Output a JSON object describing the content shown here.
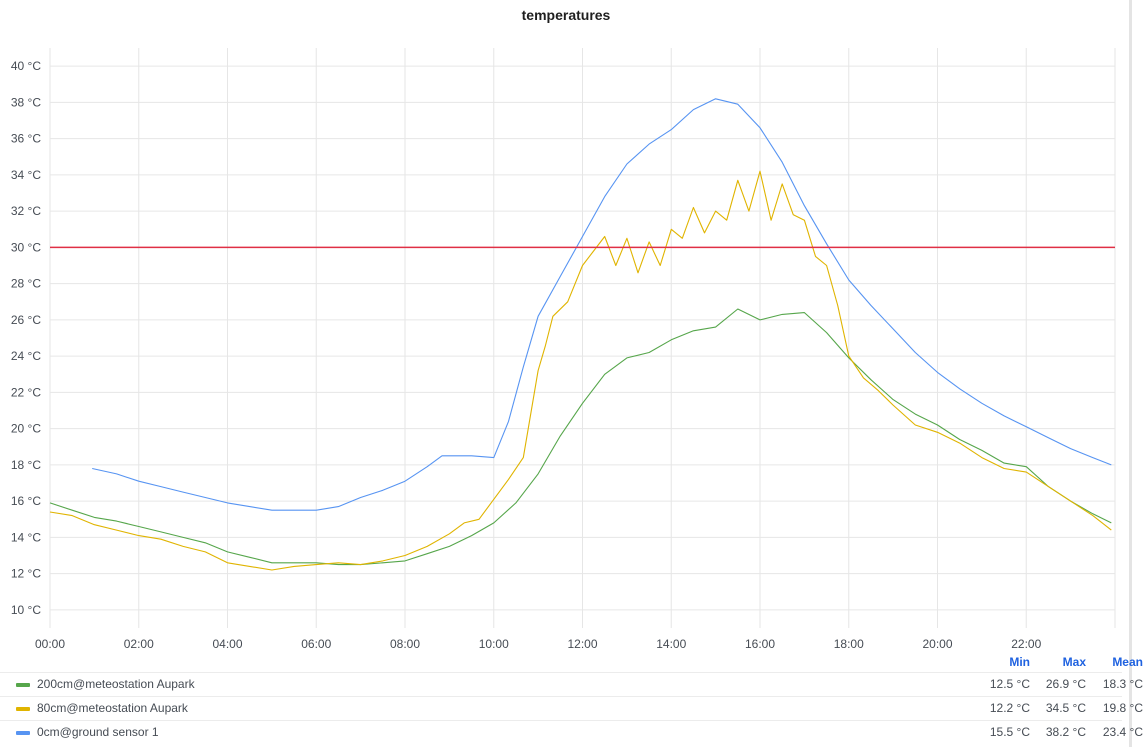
{
  "panel": {
    "title": "temperatures"
  },
  "legend": {
    "headers": {
      "min": "Min",
      "max": "Max",
      "mean": "Mean"
    },
    "rows": [
      {
        "name": "200cm@meteostation Aupark",
        "color": "#56a64b",
        "min": "12.5 °C",
        "max": "26.9 °C",
        "mean": "18.3 °C"
      },
      {
        "name": "80cm@meteostation Aupark",
        "color": "#e0b400",
        "min": "12.2 °C",
        "max": "34.5 °C",
        "mean": "19.8 °C"
      },
      {
        "name": "0cm@ground sensor 1",
        "color": "#5794f2",
        "min": "15.5 °C",
        "max": "38.2 °C",
        "mean": "23.4 °C"
      }
    ]
  },
  "chart_data": {
    "type": "line",
    "title": "temperatures",
    "x_ticks": [
      "00:00",
      "02:00",
      "04:00",
      "06:00",
      "08:00",
      "10:00",
      "12:00",
      "14:00",
      "16:00",
      "18:00",
      "20:00",
      "22:00"
    ],
    "y_ticks": [
      "10 °C",
      "12 °C",
      "14 °C",
      "16 °C",
      "18 °C",
      "20 °C",
      "22 °C",
      "24 °C",
      "26 °C",
      "28 °C",
      "30 °C",
      "32 °C",
      "34 °C",
      "36 °C",
      "38 °C",
      "40 °C"
    ],
    "xlim": [
      "00:00",
      "24:00"
    ],
    "ylim": [
      9,
      41
    ],
    "grid": true,
    "threshold": {
      "value": 30,
      "color": "#e02f44"
    },
    "series": [
      {
        "name": "200cm@meteostation Aupark",
        "color": "#56a64b",
        "x": [
          "00:00",
          "00:30",
          "01:00",
          "01:30",
          "02:00",
          "02:30",
          "03:00",
          "03:30",
          "04:00",
          "04:30",
          "05:00",
          "05:30",
          "06:00",
          "06:30",
          "07:00",
          "07:30",
          "08:00",
          "08:30",
          "09:00",
          "09:30",
          "10:00",
          "10:30",
          "11:00",
          "11:30",
          "12:00",
          "12:30",
          "13:00",
          "13:30",
          "14:00",
          "14:30",
          "15:00",
          "15:30",
          "16:00",
          "16:30",
          "17:00",
          "17:30",
          "18:00",
          "18:30",
          "19:00",
          "19:30",
          "20:00",
          "20:30",
          "21:00",
          "21:30",
          "22:00",
          "22:30",
          "23:00",
          "23:30",
          "23:55"
        ],
        "y": [
          15.9,
          15.5,
          15.1,
          14.9,
          14.6,
          14.3,
          14.0,
          13.7,
          13.2,
          12.9,
          12.6,
          12.6,
          12.6,
          12.5,
          12.5,
          12.6,
          12.7,
          13.1,
          13.5,
          14.1,
          14.8,
          15.9,
          17.5,
          19.6,
          21.4,
          23.0,
          23.9,
          24.2,
          24.9,
          25.4,
          25.6,
          26.6,
          26.0,
          26.3,
          26.4,
          25.3,
          23.9,
          22.7,
          21.6,
          20.8,
          20.2,
          19.4,
          18.8,
          18.1,
          17.9,
          16.8,
          16.0,
          15.3,
          14.8
        ]
      },
      {
        "name": "80cm@meteostation Aupark",
        "color": "#e0b400",
        "x": [
          "00:00",
          "00:30",
          "01:00",
          "01:30",
          "02:00",
          "02:30",
          "03:00",
          "03:30",
          "04:00",
          "04:30",
          "05:00",
          "05:30",
          "06:00",
          "06:30",
          "07:00",
          "07:30",
          "08:00",
          "08:30",
          "09:00",
          "09:20",
          "09:40",
          "10:00",
          "10:20",
          "10:40",
          "11:00",
          "11:10",
          "11:20",
          "11:40",
          "12:00",
          "12:15",
          "12:30",
          "12:45",
          "13:00",
          "13:15",
          "13:30",
          "13:45",
          "14:00",
          "14:15",
          "14:30",
          "14:45",
          "15:00",
          "15:15",
          "15:30",
          "15:45",
          "16:00",
          "16:15",
          "16:30",
          "16:45",
          "17:00",
          "17:15",
          "17:30",
          "17:45",
          "18:00",
          "18:20",
          "18:40",
          "19:00",
          "19:30",
          "20:00",
          "20:30",
          "21:00",
          "21:30",
          "22:00",
          "22:30",
          "23:00",
          "23:30",
          "23:55"
        ],
        "y": [
          15.4,
          15.2,
          14.7,
          14.4,
          14.1,
          13.9,
          13.5,
          13.2,
          12.6,
          12.4,
          12.2,
          12.4,
          12.5,
          12.6,
          12.5,
          12.7,
          13.0,
          13.5,
          14.2,
          14.8,
          15.0,
          16.1,
          17.2,
          18.4,
          23.2,
          24.6,
          26.2,
          27.0,
          29.0,
          29.8,
          30.6,
          29.0,
          30.5,
          28.6,
          30.3,
          29.0,
          31.0,
          30.5,
          32.2,
          30.8,
          32.0,
          31.5,
          33.7,
          32.0,
          34.2,
          31.5,
          33.5,
          31.8,
          31.5,
          29.5,
          29.0,
          26.8,
          24.0,
          22.8,
          22.1,
          21.3,
          20.2,
          19.8,
          19.2,
          18.4,
          17.8,
          17.6,
          16.8,
          16.0,
          15.2,
          14.4
        ]
      },
      {
        "name": "0cm@ground sensor 1",
        "color": "#5794f2",
        "x": [
          "00:57",
          "01:30",
          "02:00",
          "02:30",
          "03:00",
          "03:30",
          "04:00",
          "04:30",
          "05:00",
          "05:30",
          "06:00",
          "06:30",
          "07:00",
          "07:30",
          "08:00",
          "08:30",
          "08:50",
          "09:30",
          "10:00",
          "10:20",
          "10:40",
          "11:00",
          "11:30",
          "12:00",
          "12:30",
          "13:00",
          "13:30",
          "14:00",
          "14:30",
          "15:00",
          "15:30",
          "16:00",
          "16:30",
          "17:00",
          "17:30",
          "18:00",
          "18:30",
          "19:00",
          "19:30",
          "20:00",
          "20:30",
          "21:00",
          "21:30",
          "22:00",
          "22:30",
          "23:00",
          "23:30",
          "23:55"
        ],
        "y": [
          17.8,
          17.5,
          17.1,
          16.8,
          16.5,
          16.2,
          15.9,
          15.7,
          15.5,
          15.5,
          15.5,
          15.7,
          16.2,
          16.6,
          17.1,
          17.9,
          18.5,
          18.5,
          18.4,
          20.4,
          23.4,
          26.2,
          28.4,
          30.6,
          32.8,
          34.6,
          35.7,
          36.5,
          37.6,
          38.2,
          37.9,
          36.6,
          34.7,
          32.3,
          30.2,
          28.2,
          26.8,
          25.5,
          24.2,
          23.1,
          22.2,
          21.4,
          20.7,
          20.1,
          19.5,
          18.9,
          18.4,
          18.0
        ]
      }
    ]
  }
}
